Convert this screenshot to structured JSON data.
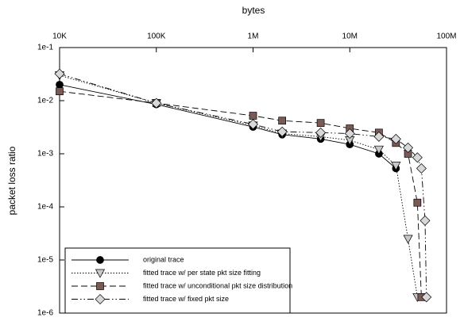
{
  "chart_data": {
    "type": "line",
    "x_label": "bytes",
    "y_label": "packet loss ratio",
    "xscale": "log",
    "yscale": "log",
    "xlim": [
      10000,
      100000000
    ],
    "ylim": [
      1e-06,
      0.1
    ],
    "xticks": [
      {
        "value": 10000,
        "label": "10K"
      },
      {
        "value": 100000,
        "label": "100K"
      },
      {
        "value": 1000000,
        "label": "1M"
      },
      {
        "value": 10000000,
        "label": "10M"
      },
      {
        "value": 100000000,
        "label": "100M"
      }
    ],
    "yticks": [
      {
        "value": 0.1,
        "label": "1e-1"
      },
      {
        "value": 0.01,
        "label": "1e-2"
      },
      {
        "value": 0.001,
        "label": "1e-3"
      },
      {
        "value": 0.0001,
        "label": "1e-4"
      },
      {
        "value": 1e-05,
        "label": "1e-5"
      },
      {
        "value": 1e-06,
        "label": "1e-6"
      }
    ],
    "legend": "bottom-left",
    "series": [
      {
        "name": "original trace",
        "color": "#000000",
        "marker": "circle",
        "dash": "solid",
        "x": [
          10000,
          100000,
          1000000,
          2000000,
          5000000,
          10000000,
          20000000,
          30000000
        ],
        "values": [
          0.02,
          0.0085,
          0.0032,
          0.0023,
          0.0019,
          0.0015,
          0.001,
          0.00053
        ]
      },
      {
        "name": "fitted trace w/ per state pkt size fitting",
        "color": "#c8c8c8",
        "marker": "triangle",
        "dash": "dotted",
        "x": [
          10000,
          100000,
          1000000,
          2000000,
          5000000,
          10000000,
          20000000,
          30000000,
          40000000,
          50000000
        ],
        "values": [
          0.03,
          0.009,
          0.0034,
          0.0024,
          0.0021,
          0.0018,
          0.0012,
          0.0006,
          2.5e-05,
          2e-06
        ]
      },
      {
        "name": "fitted trace w/ unconditional pkt size distribution",
        "color": "#7a5a55",
        "marker": "square",
        "dash": "dashed",
        "x": [
          10000,
          100000,
          1000000,
          2000000,
          5000000,
          10000000,
          20000000,
          30000000,
          40000000,
          50000000,
          55000000
        ],
        "values": [
          0.015,
          0.009,
          0.0052,
          0.0042,
          0.0038,
          0.003,
          0.0025,
          0.0016,
          0.001,
          0.00012,
          2e-06
        ]
      },
      {
        "name": "fitted trace w/ fixed pkt size",
        "color": "#d8d8d8",
        "marker": "diamond",
        "dash": "dashdotdot",
        "x": [
          10000,
          100000,
          1000000,
          2000000,
          5000000,
          10000000,
          20000000,
          30000000,
          40000000,
          50000000,
          55000000,
          60000000,
          62000000
        ],
        "values": [
          0.032,
          0.009,
          0.0036,
          0.0026,
          0.0025,
          0.0024,
          0.0021,
          0.0019,
          0.0013,
          0.00085,
          0.00053,
          5.5e-05,
          2e-06
        ]
      }
    ]
  }
}
